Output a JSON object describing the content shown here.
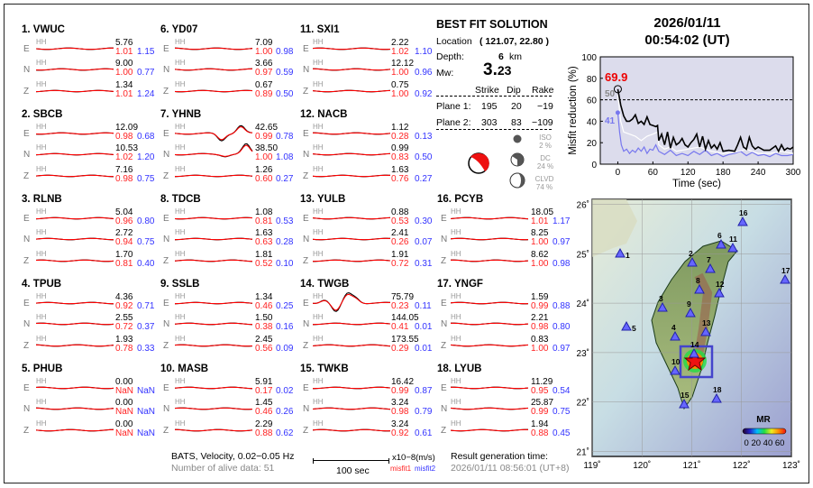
{
  "stations": [
    {
      "num": "1.",
      "name": "VWUC",
      "comps": [
        {
          "c": "E",
          "ch": "HH",
          "amp": "5.76",
          "m1": "1.01",
          "m2": "1.15"
        },
        {
          "c": "N",
          "ch": "HH",
          "amp": "9.00",
          "m1": "1.00",
          "m2": "0.77"
        },
        {
          "c": "Z",
          "ch": "HH",
          "amp": "1.34",
          "m1": "1.01",
          "m2": "1.24"
        }
      ]
    },
    {
      "num": "2.",
      "name": "SBCB",
      "comps": [
        {
          "c": "E",
          "ch": "HH",
          "amp": "12.09",
          "m1": "0.98",
          "m2": "0.68"
        },
        {
          "c": "N",
          "ch": "HH",
          "amp": "10.53",
          "m1": "1.02",
          "m2": "1.20"
        },
        {
          "c": "Z",
          "ch": "HH",
          "amp": "7.16",
          "m1": "0.98",
          "m2": "0.75"
        }
      ]
    },
    {
      "num": "3.",
      "name": "RLNB",
      "comps": [
        {
          "c": "E",
          "ch": "HH",
          "amp": "5.04",
          "m1": "0.96",
          "m2": "0.80"
        },
        {
          "c": "N",
          "ch": "HH",
          "amp": "2.72",
          "m1": "0.94",
          "m2": "0.75"
        },
        {
          "c": "Z",
          "ch": "HH",
          "amp": "1.70",
          "m1": "0.81",
          "m2": "0.40"
        }
      ]
    },
    {
      "num": "4.",
      "name": "TPUB",
      "comps": [
        {
          "c": "E",
          "ch": "HH",
          "amp": "4.36",
          "m1": "0.92",
          "m2": "0.71"
        },
        {
          "c": "N",
          "ch": "HH",
          "amp": "2.55",
          "m1": "0.72",
          "m2": "0.37"
        },
        {
          "c": "Z",
          "ch": "HH",
          "amp": "1.93",
          "m1": "0.78",
          "m2": "0.33"
        }
      ]
    },
    {
      "num": "5.",
      "name": "PHUB",
      "comps": [
        {
          "c": "E",
          "ch": "HH",
          "amp": "0.00",
          "m1": "NaN",
          "m2": "NaN"
        },
        {
          "c": "N",
          "ch": "HH",
          "amp": "0.00",
          "m1": "NaN",
          "m2": "NaN"
        },
        {
          "c": "Z",
          "ch": "HH",
          "amp": "0.00",
          "m1": "NaN",
          "m2": "NaN"
        }
      ]
    },
    {
      "num": "6.",
      "name": "YD07",
      "comps": [
        {
          "c": "E",
          "ch": "HH",
          "amp": "7.09",
          "m1": "1.00",
          "m2": "0.98"
        },
        {
          "c": "N",
          "ch": "HH",
          "amp": "3.66",
          "m1": "0.97",
          "m2": "0.59"
        },
        {
          "c": "Z",
          "ch": "HH",
          "amp": "0.67",
          "m1": "0.89",
          "m2": "0.50"
        }
      ]
    },
    {
      "num": "7.",
      "name": "YHNB",
      "comps": [
        {
          "c": "E",
          "ch": "HH",
          "amp": "42.65",
          "m1": "0.99",
          "m2": "0.78"
        },
        {
          "c": "N",
          "ch": "HH",
          "amp": "38.50",
          "m1": "1.00",
          "m2": "1.08"
        },
        {
          "c": "Z",
          "ch": "HH",
          "amp": "1.26",
          "m1": "0.60",
          "m2": "0.27"
        }
      ]
    },
    {
      "num": "8.",
      "name": "TDCB",
      "comps": [
        {
          "c": "E",
          "ch": "HH",
          "amp": "1.08",
          "m1": "0.81",
          "m2": "0.53"
        },
        {
          "c": "N",
          "ch": "HH",
          "amp": "1.63",
          "m1": "0.63",
          "m2": "0.28"
        },
        {
          "c": "Z",
          "ch": "HH",
          "amp": "1.81",
          "m1": "0.52",
          "m2": "0.10"
        }
      ]
    },
    {
      "num": "9.",
      "name": "SSLB",
      "comps": [
        {
          "c": "E",
          "ch": "HH",
          "amp": "1.34",
          "m1": "0.46",
          "m2": "0.25"
        },
        {
          "c": "N",
          "ch": "HH",
          "amp": "1.50",
          "m1": "0.38",
          "m2": "0.16"
        },
        {
          "c": "Z",
          "ch": "HH",
          "amp": "2.45",
          "m1": "0.56",
          "m2": "0.09"
        }
      ]
    },
    {
      "num": "10.",
      "name": "MASB",
      "comps": [
        {
          "c": "E",
          "ch": "HH",
          "amp": "5.91",
          "m1": "0.17",
          "m2": "0.02"
        },
        {
          "c": "N",
          "ch": "HH",
          "amp": "1.45",
          "m1": "0.46",
          "m2": "0.26"
        },
        {
          "c": "Z",
          "ch": "HH",
          "amp": "2.29",
          "m1": "0.88",
          "m2": "0.62"
        }
      ]
    },
    {
      "num": "11.",
      "name": "SXI1",
      "comps": [
        {
          "c": "E",
          "ch": "HH",
          "amp": "2.22",
          "m1": "1.02",
          "m2": "1.10"
        },
        {
          "c": "N",
          "ch": "HH",
          "amp": "12.12",
          "m1": "1.00",
          "m2": "0.96"
        },
        {
          "c": "Z",
          "ch": "HH",
          "amp": "0.75",
          "m1": "1.00",
          "m2": "0.92"
        }
      ]
    },
    {
      "num": "12.",
      "name": "NACB",
      "comps": [
        {
          "c": "E",
          "ch": "HH",
          "amp": "1.12",
          "m1": "0.28",
          "m2": "0.13"
        },
        {
          "c": "N",
          "ch": "HH",
          "amp": "0.99",
          "m1": "0.83",
          "m2": "0.50"
        },
        {
          "c": "Z",
          "ch": "HH",
          "amp": "1.63",
          "m1": "0.76",
          "m2": "0.27"
        }
      ]
    },
    {
      "num": "13.",
      "name": "YULB",
      "comps": [
        {
          "c": "E",
          "ch": "HH",
          "amp": "0.88",
          "m1": "0.53",
          "m2": "0.30"
        },
        {
          "c": "N",
          "ch": "HH",
          "amp": "2.41",
          "m1": "0.26",
          "m2": "0.07"
        },
        {
          "c": "Z",
          "ch": "HH",
          "amp": "1.91",
          "m1": "0.72",
          "m2": "0.31"
        }
      ]
    },
    {
      "num": "14.",
      "name": "TWGB",
      "comps": [
        {
          "c": "E",
          "ch": "HH",
          "amp": "75.79",
          "m1": "0.23",
          "m2": "0.11"
        },
        {
          "c": "N",
          "ch": "HH",
          "amp": "144.05",
          "m1": "0.41",
          "m2": "0.01"
        },
        {
          "c": "Z",
          "ch": "HH",
          "amp": "173.55",
          "m1": "0.29",
          "m2": "0.01"
        }
      ]
    },
    {
      "num": "15.",
      "name": "TWKB",
      "comps": [
        {
          "c": "E",
          "ch": "HH",
          "amp": "16.42",
          "m1": "0.99",
          "m2": "0.87"
        },
        {
          "c": "N",
          "ch": "HH",
          "amp": "3.24",
          "m1": "0.98",
          "m2": "0.79"
        },
        {
          "c": "Z",
          "ch": "HH",
          "amp": "3.24",
          "m1": "0.92",
          "m2": "0.61"
        }
      ]
    },
    {
      "num": "16.",
      "name": "PCYB",
      "comps": [
        {
          "c": "E",
          "ch": "HH",
          "amp": "18.05",
          "m1": "1.01",
          "m2": "1.17"
        },
        {
          "c": "N",
          "ch": "HH",
          "amp": "8.25",
          "m1": "1.00",
          "m2": "0.97"
        },
        {
          "c": "Z",
          "ch": "HH",
          "amp": "8.62",
          "m1": "1.00",
          "m2": "0.98"
        }
      ]
    },
    {
      "num": "17.",
      "name": "YNGF",
      "comps": [
        {
          "c": "E",
          "ch": "HH",
          "amp": "1.59",
          "m1": "0.99",
          "m2": "0.88"
        },
        {
          "c": "N",
          "ch": "HH",
          "amp": "2.21",
          "m1": "0.98",
          "m2": "0.80"
        },
        {
          "c": "Z",
          "ch": "HH",
          "amp": "0.83",
          "m1": "1.00",
          "m2": "0.97"
        }
      ]
    },
    {
      "num": "18.",
      "name": "LYUB",
      "comps": [
        {
          "c": "E",
          "ch": "HH",
          "amp": "11.29",
          "m1": "0.95",
          "m2": "0.54"
        },
        {
          "c": "N",
          "ch": "HH",
          "amp": "25.87",
          "m1": "0.99",
          "m2": "0.75"
        },
        {
          "c": "Z",
          "ch": "HH",
          "amp": "1.94",
          "m1": "0.88",
          "m2": "0.45"
        }
      ]
    }
  ],
  "footer": {
    "info": "BATS, Velocity, 0.02−0.05 Hz",
    "alive": "Number of alive data: 51",
    "scale": "100 sec",
    "units": "x10−8(m/s)",
    "misfit1": "misfit1",
    "misfit2": "misfit2",
    "gen_label": "Result generation time:",
    "gen_time": "2026/01/11 08:56:01 (UT+8)"
  },
  "solution": {
    "title": "BEST FIT SOLUTION",
    "loc_label": "Location",
    "loc_value": "( 121.07,  22.80 )",
    "depth_label": "Depth:",
    "depth_value": "6",
    "depth_unit": "km",
    "mw_label": "Mw:",
    "mw_big": "3.",
    "mw_small": "23",
    "headers": [
      "Strike",
      "Dip",
      "Rake"
    ],
    "planes": [
      {
        "label": "Plane 1:",
        "strike": "195",
        "dip": "20",
        "rake": "−19"
      },
      {
        "label": "Plane 2:",
        "strike": "303",
        "dip": "83",
        "rake": "−109"
      }
    ],
    "iso": {
      "label": "ISO",
      "pct": "2  %"
    },
    "dc": {
      "label": "DC",
      "pct": "24 %"
    },
    "clvd": {
      "label": "CLVD",
      "pct": "74 %"
    },
    "colors": {
      "beachball": "#ee1111"
    }
  },
  "header": {
    "date": "2026/01/11",
    "time": "00:54:02  (UT)"
  },
  "chart_data": {
    "type": "line",
    "ylabel": "Misfit reduction (%)",
    "xlabel": "Time (sec)",
    "xlim": [
      -30,
      300
    ],
    "ylim": [
      0,
      100
    ],
    "xticks": [
      "0",
      "60",
      "120",
      "180",
      "240",
      "300"
    ],
    "yticks": [
      "0",
      "20",
      "40",
      "60",
      "80",
      "100"
    ],
    "threshold": 60,
    "max_label": "69.9",
    "gray_label": "50",
    "blue_label": "41",
    "series": [
      {
        "name": "best",
        "color": "#000000",
        "x": [
          0,
          5,
          10,
          15,
          20,
          25,
          30,
          35,
          40,
          45,
          50,
          55,
          60,
          65,
          68,
          70,
          75,
          80,
          85,
          90,
          95,
          100,
          105,
          110,
          115,
          120,
          125,
          130,
          135,
          140,
          145,
          150,
          155,
          160,
          165,
          170,
          175,
          180,
          190,
          200,
          205,
          210,
          215,
          220,
          225,
          230,
          235,
          240,
          250,
          260,
          265,
          270,
          275,
          280,
          285,
          290,
          295,
          300
        ],
        "y": [
          69.9,
          55,
          45,
          40,
          40,
          42,
          46,
          38,
          40,
          37,
          44,
          37,
          36,
          35,
          36,
          22,
          28,
          18,
          30,
          15,
          25,
          18,
          20,
          24,
          18,
          16,
          20,
          23,
          28,
          16,
          26,
          14,
          22,
          15,
          18,
          14,
          20,
          12,
          13,
          12,
          18,
          25,
          16,
          14,
          25,
          17,
          14,
          16,
          13,
          13,
          15,
          17,
          12,
          18,
          13,
          15,
          14,
          16
        ]
      },
      {
        "name": "alt",
        "color": "#ffffff",
        "x": [
          0,
          5,
          10,
          20,
          30,
          40,
          50,
          60,
          68,
          70,
          80,
          90,
          100,
          120,
          140,
          160,
          180,
          200,
          220,
          240,
          260,
          280,
          300
        ],
        "y": [
          65,
          40,
          30,
          28,
          26,
          22,
          26,
          28,
          30,
          18,
          14,
          16,
          12,
          14,
          16,
          12,
          10,
          11,
          14,
          10,
          10,
          12,
          10
        ]
      },
      {
        "name": "blue",
        "color": "#7777ee",
        "x": [
          0,
          3,
          6,
          10,
          15,
          20,
          25,
          30,
          35,
          40,
          45,
          50,
          55,
          60,
          65,
          70,
          80,
          90,
          100,
          110,
          120,
          130,
          140,
          150,
          160,
          170,
          180,
          190,
          200,
          210,
          220,
          230,
          240,
          250,
          260,
          270,
          280,
          290,
          300
        ],
        "y": [
          48,
          30,
          18,
          12,
          14,
          10,
          13,
          11,
          15,
          12,
          16,
          10,
          14,
          13,
          18,
          12,
          9,
          13,
          8,
          10,
          8,
          12,
          9,
          13,
          8,
          10,
          7,
          9,
          10,
          12,
          8,
          11,
          8,
          9,
          7,
          10,
          8,
          8,
          9
        ]
      }
    ]
  },
  "map": {
    "lon_ticks": [
      "119˚",
      "120˚",
      "121˚",
      "122˚",
      "123˚"
    ],
    "lat_ticks": [
      "26˚",
      "25˚",
      "24˚",
      "23˚",
      "22˚",
      "21˚"
    ],
    "legend_title": "MR",
    "legend_ticks": "0 20 40 60",
    "station_labels": [
      "1",
      "2",
      "3",
      "4",
      "5",
      "6",
      "7",
      "8",
      "9",
      "10",
      "11",
      "12",
      "13",
      "14",
      "15",
      "16",
      "17",
      "18"
    ]
  }
}
